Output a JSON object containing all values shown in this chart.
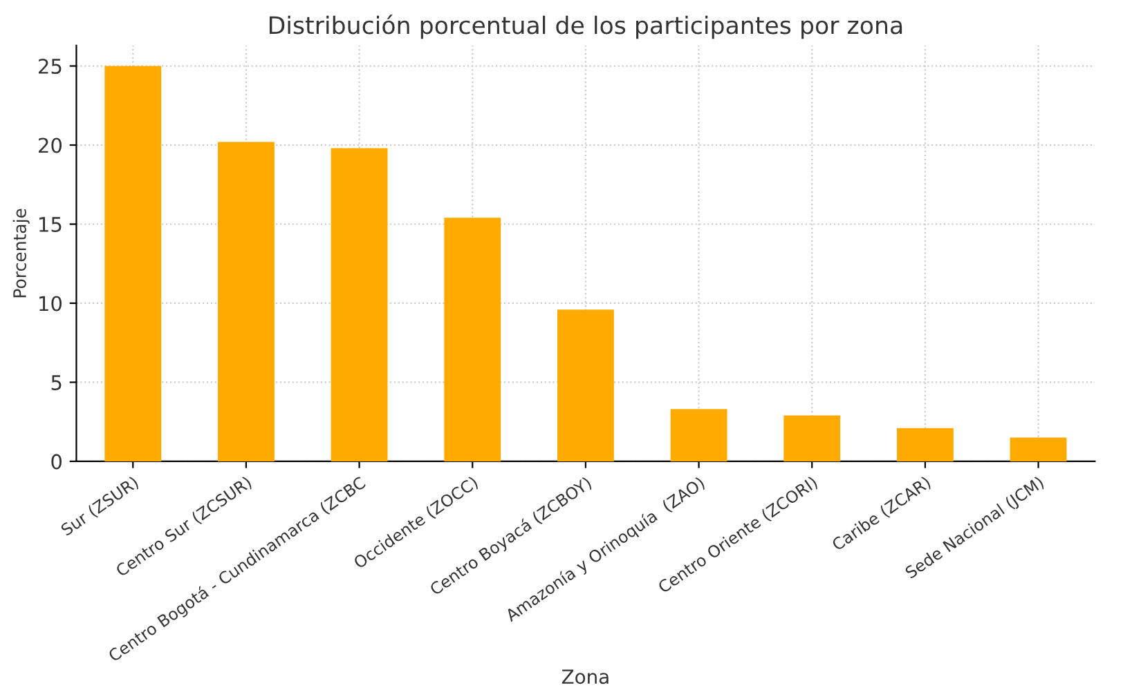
{
  "chart_data": {
    "type": "bar",
    "title": "Distribución porcentual de los participantes por zona",
    "xlabel": "Zona",
    "ylabel": "Porcentaje",
    "categories": [
      "Sur (ZSUR)",
      "Centro Sur (ZCSUR)",
      "Centro Bogotá - Cundinamarca (ZCBC",
      "Occidente (ZOCC)",
      "Centro Boyacá (ZCBOY)",
      "Amazonía y Orinoquía  (ZAO)",
      "Centro Oriente (ZCORI)",
      "Caribe (ZCAR)",
      "Sede Nacional (JCM)"
    ],
    "values": [
      25.0,
      20.2,
      19.8,
      15.4,
      9.6,
      3.3,
      2.9,
      2.1,
      1.5
    ],
    "color": "#ffaa00",
    "ylim": [
      0,
      26.3
    ],
    "yticks": [
      0,
      5,
      10,
      15,
      20,
      25
    ],
    "grid": true,
    "legend": false
  }
}
